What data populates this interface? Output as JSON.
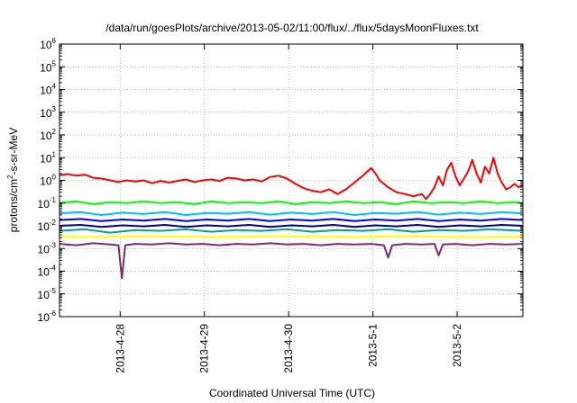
{
  "chart_data": {
    "type": "line",
    "title": "/data/run/goesPlots/archive/2013-05-02/11:00/flux/../flux/5daysMoonFluxes.txt",
    "xlabel": "Coordinated Universal Time (UTC)",
    "ylabel_parts": {
      "before": "protons/cm",
      "sup": "2",
      "after": "-s-sr-MeV"
    },
    "y_scale": "log",
    "ylim": [
      1e-06,
      1000000.0
    ],
    "y_tick_base": "10",
    "y_tick_exponents": [
      "-6",
      "-5",
      "-4",
      "-3",
      "-2",
      "-1",
      "0",
      "1",
      "2",
      "3",
      "4",
      "5",
      "6"
    ],
    "x_ticks": [
      {
        "label": "2013-4-28",
        "t": 0.72
      },
      {
        "label": "2013-4-29",
        "t": 1.72
      },
      {
        "label": "2013-4-30",
        "t": 2.72
      },
      {
        "label": "2013-5-1",
        "t": 3.72
      },
      {
        "label": "2013-5-2",
        "t": 4.72
      }
    ],
    "x_range_days": [
      0,
      5.5
    ],
    "x_units_note": "t is days since the first sample",
    "grid": true,
    "series": [
      {
        "color": "#ff0000",
        "points": [
          [
            0.0,
            1.7
          ],
          [
            0.1,
            1.9
          ],
          [
            0.2,
            1.6
          ],
          [
            0.3,
            1.8
          ],
          [
            0.4,
            1.3
          ],
          [
            0.5,
            1.2
          ],
          [
            0.6,
            1.0
          ],
          [
            0.7,
            0.85
          ],
          [
            0.8,
            1.0
          ],
          [
            0.9,
            0.9
          ],
          [
            1.0,
            1.0
          ],
          [
            1.1,
            0.75
          ],
          [
            1.2,
            0.95
          ],
          [
            1.3,
            0.8
          ],
          [
            1.4,
            0.95
          ],
          [
            1.5,
            1.1
          ],
          [
            1.6,
            0.85
          ],
          [
            1.7,
            1.0
          ],
          [
            1.8,
            1.1
          ],
          [
            1.9,
            0.95
          ],
          [
            2.0,
            1.3
          ],
          [
            2.1,
            1.2
          ],
          [
            2.2,
            1.0
          ],
          [
            2.3,
            1.1
          ],
          [
            2.4,
            0.9
          ],
          [
            2.5,
            1.4
          ],
          [
            2.6,
            1.6
          ],
          [
            2.7,
            1.2
          ],
          [
            2.8,
            0.7
          ],
          [
            2.9,
            0.45
          ],
          [
            3.0,
            0.35
          ],
          [
            3.1,
            0.3
          ],
          [
            3.2,
            0.4
          ],
          [
            3.3,
            0.25
          ],
          [
            3.4,
            0.4
          ],
          [
            3.5,
            0.8
          ],
          [
            3.6,
            1.6
          ],
          [
            3.7,
            3.5
          ],
          [
            3.75,
            2.0
          ],
          [
            3.8,
            1.0
          ],
          [
            3.9,
            0.5
          ],
          [
            4.0,
            0.3
          ],
          [
            4.1,
            0.25
          ],
          [
            4.2,
            0.2
          ],
          [
            4.3,
            0.25
          ],
          [
            4.35,
            0.15
          ],
          [
            4.4,
            0.25
          ],
          [
            4.45,
            0.5
          ],
          [
            4.5,
            1.5
          ],
          [
            4.55,
            0.6
          ],
          [
            4.6,
            3.0
          ],
          [
            4.65,
            6.0
          ],
          [
            4.7,
            1.5
          ],
          [
            4.75,
            0.6
          ],
          [
            4.8,
            1.2
          ],
          [
            4.85,
            2.5
          ],
          [
            4.9,
            8.0
          ],
          [
            4.95,
            2.0
          ],
          [
            5.0,
            0.8
          ],
          [
            5.05,
            4.0
          ],
          [
            5.1,
            2.0
          ],
          [
            5.15,
            10.0
          ],
          [
            5.2,
            2.0
          ],
          [
            5.25,
            0.8
          ],
          [
            5.3,
            0.4
          ],
          [
            5.35,
            0.5
          ],
          [
            5.4,
            0.7
          ],
          [
            5.45,
            0.5
          ],
          [
            5.5,
            0.6
          ]
        ]
      },
      {
        "color": "#00ff00",
        "points": [
          [
            0.0,
            0.1
          ],
          [
            0.2,
            0.12
          ],
          [
            0.4,
            0.09
          ],
          [
            0.6,
            0.11
          ],
          [
            0.8,
            0.1
          ],
          [
            1.0,
            0.12
          ],
          [
            1.2,
            0.1
          ],
          [
            1.4,
            0.11
          ],
          [
            1.6,
            0.09
          ],
          [
            1.8,
            0.12
          ],
          [
            2.0,
            0.1
          ],
          [
            2.2,
            0.11
          ],
          [
            2.4,
            0.1
          ],
          [
            2.6,
            0.12
          ],
          [
            2.8,
            0.09
          ],
          [
            3.0,
            0.11
          ],
          [
            3.2,
            0.1
          ],
          [
            3.4,
            0.12
          ],
          [
            3.6,
            0.1
          ],
          [
            3.8,
            0.11
          ],
          [
            4.0,
            0.09
          ],
          [
            4.2,
            0.12
          ],
          [
            4.4,
            0.1
          ],
          [
            4.6,
            0.11
          ],
          [
            4.8,
            0.1
          ],
          [
            5.0,
            0.12
          ],
          [
            5.2,
            0.1
          ],
          [
            5.4,
            0.11
          ],
          [
            5.5,
            0.1
          ]
        ]
      },
      {
        "color": "#00bfff",
        "points": [
          [
            0.0,
            0.035
          ],
          [
            0.25,
            0.04
          ],
          [
            0.5,
            0.03
          ],
          [
            0.75,
            0.038
          ],
          [
            1.0,
            0.033
          ],
          [
            1.25,
            0.04
          ],
          [
            1.5,
            0.03
          ],
          [
            1.75,
            0.037
          ],
          [
            2.0,
            0.034
          ],
          [
            2.25,
            0.04
          ],
          [
            2.5,
            0.031
          ],
          [
            2.75,
            0.038
          ],
          [
            3.0,
            0.033
          ],
          [
            3.25,
            0.04
          ],
          [
            3.5,
            0.03
          ],
          [
            3.75,
            0.037
          ],
          [
            4.0,
            0.034
          ],
          [
            4.25,
            0.04
          ],
          [
            4.5,
            0.031
          ],
          [
            4.75,
            0.038
          ],
          [
            5.0,
            0.033
          ],
          [
            5.25,
            0.04
          ],
          [
            5.5,
            0.035
          ]
        ]
      },
      {
        "color": "#0000ff",
        "points": [
          [
            0.0,
            0.018
          ],
          [
            0.25,
            0.02
          ],
          [
            0.5,
            0.016
          ],
          [
            0.75,
            0.019
          ],
          [
            1.0,
            0.017
          ],
          [
            1.25,
            0.02
          ],
          [
            1.5,
            0.016
          ],
          [
            1.75,
            0.019
          ],
          [
            2.0,
            0.017
          ],
          [
            2.25,
            0.02
          ],
          [
            2.5,
            0.016
          ],
          [
            2.75,
            0.019
          ],
          [
            3.0,
            0.017
          ],
          [
            3.25,
            0.02
          ],
          [
            3.5,
            0.016
          ],
          [
            3.75,
            0.019
          ],
          [
            4.0,
            0.017
          ],
          [
            4.25,
            0.02
          ],
          [
            4.5,
            0.016
          ],
          [
            4.75,
            0.019
          ],
          [
            5.0,
            0.017
          ],
          [
            5.25,
            0.02
          ],
          [
            5.5,
            0.018
          ]
        ]
      },
      {
        "color": "#000080",
        "points": [
          [
            0.0,
            0.01
          ],
          [
            0.25,
            0.011
          ],
          [
            0.5,
            0.009
          ],
          [
            0.75,
            0.0105
          ],
          [
            1.0,
            0.0095
          ],
          [
            1.25,
            0.011
          ],
          [
            1.5,
            0.009
          ],
          [
            1.75,
            0.0105
          ],
          [
            2.0,
            0.0095
          ],
          [
            2.25,
            0.011
          ],
          [
            2.5,
            0.009
          ],
          [
            2.75,
            0.0105
          ],
          [
            3.0,
            0.0095
          ],
          [
            3.25,
            0.011
          ],
          [
            3.5,
            0.009
          ],
          [
            3.75,
            0.0105
          ],
          [
            4.0,
            0.0095
          ],
          [
            4.25,
            0.011
          ],
          [
            4.5,
            0.009
          ],
          [
            4.75,
            0.0105
          ],
          [
            5.0,
            0.0095
          ],
          [
            5.25,
            0.011
          ],
          [
            5.5,
            0.01
          ]
        ]
      },
      {
        "color": "#00a0a0",
        "points": [
          [
            0.0,
            0.006
          ],
          [
            0.3,
            0.007
          ],
          [
            0.6,
            0.005
          ],
          [
            0.9,
            0.0065
          ],
          [
            1.2,
            0.006
          ],
          [
            1.5,
            0.007
          ],
          [
            1.8,
            0.0055
          ],
          [
            2.1,
            0.0065
          ],
          [
            2.4,
            0.006
          ],
          [
            2.7,
            0.007
          ],
          [
            3.0,
            0.0055
          ],
          [
            3.3,
            0.0065
          ],
          [
            3.6,
            0.006
          ],
          [
            3.9,
            0.007
          ],
          [
            4.2,
            0.0055
          ],
          [
            4.5,
            0.0065
          ],
          [
            4.8,
            0.006
          ],
          [
            5.1,
            0.007
          ],
          [
            5.5,
            0.006
          ]
        ]
      },
      {
        "color": "#ffff00",
        "points": [
          [
            0.0,
            0.0033
          ],
          [
            0.5,
            0.0032
          ],
          [
            1.0,
            0.0034
          ],
          [
            1.5,
            0.0033
          ],
          [
            2.0,
            0.0032
          ],
          [
            2.5,
            0.0034
          ],
          [
            3.0,
            0.0033
          ],
          [
            3.5,
            0.0032
          ],
          [
            4.0,
            0.0034
          ],
          [
            4.5,
            0.0033
          ],
          [
            5.0,
            0.0032
          ],
          [
            5.5,
            0.0033
          ]
        ]
      },
      {
        "color": "#7b2a6e",
        "points": [
          [
            0.0,
            0.0016
          ],
          [
            0.2,
            0.0014
          ],
          [
            0.4,
            0.0017
          ],
          [
            0.6,
            0.0015
          ],
          [
            0.7,
            0.0014
          ],
          [
            0.74,
            5e-05
          ],
          [
            0.78,
            0.0014
          ],
          [
            0.9,
            0.0016
          ],
          [
            1.1,
            0.0015
          ],
          [
            1.3,
            0.0017
          ],
          [
            1.5,
            0.0015
          ],
          [
            1.7,
            0.0016
          ],
          [
            1.9,
            0.0014
          ],
          [
            2.1,
            0.0016
          ],
          [
            2.3,
            0.0015
          ],
          [
            2.5,
            0.0017
          ],
          [
            2.7,
            0.0015
          ],
          [
            2.9,
            0.0016
          ],
          [
            3.1,
            0.0014
          ],
          [
            3.3,
            0.0016
          ],
          [
            3.5,
            0.0015
          ],
          [
            3.7,
            0.0016
          ],
          [
            3.85,
            0.0014
          ],
          [
            3.9,
            0.0004
          ],
          [
            3.95,
            0.0014
          ],
          [
            4.1,
            0.0016
          ],
          [
            4.3,
            0.0015
          ],
          [
            4.45,
            0.0016
          ],
          [
            4.5,
            0.0005
          ],
          [
            4.55,
            0.0015
          ],
          [
            4.7,
            0.0016
          ],
          [
            4.9,
            0.0014
          ],
          [
            5.1,
            0.0016
          ],
          [
            5.3,
            0.0015
          ],
          [
            5.5,
            0.0016
          ]
        ]
      }
    ]
  }
}
